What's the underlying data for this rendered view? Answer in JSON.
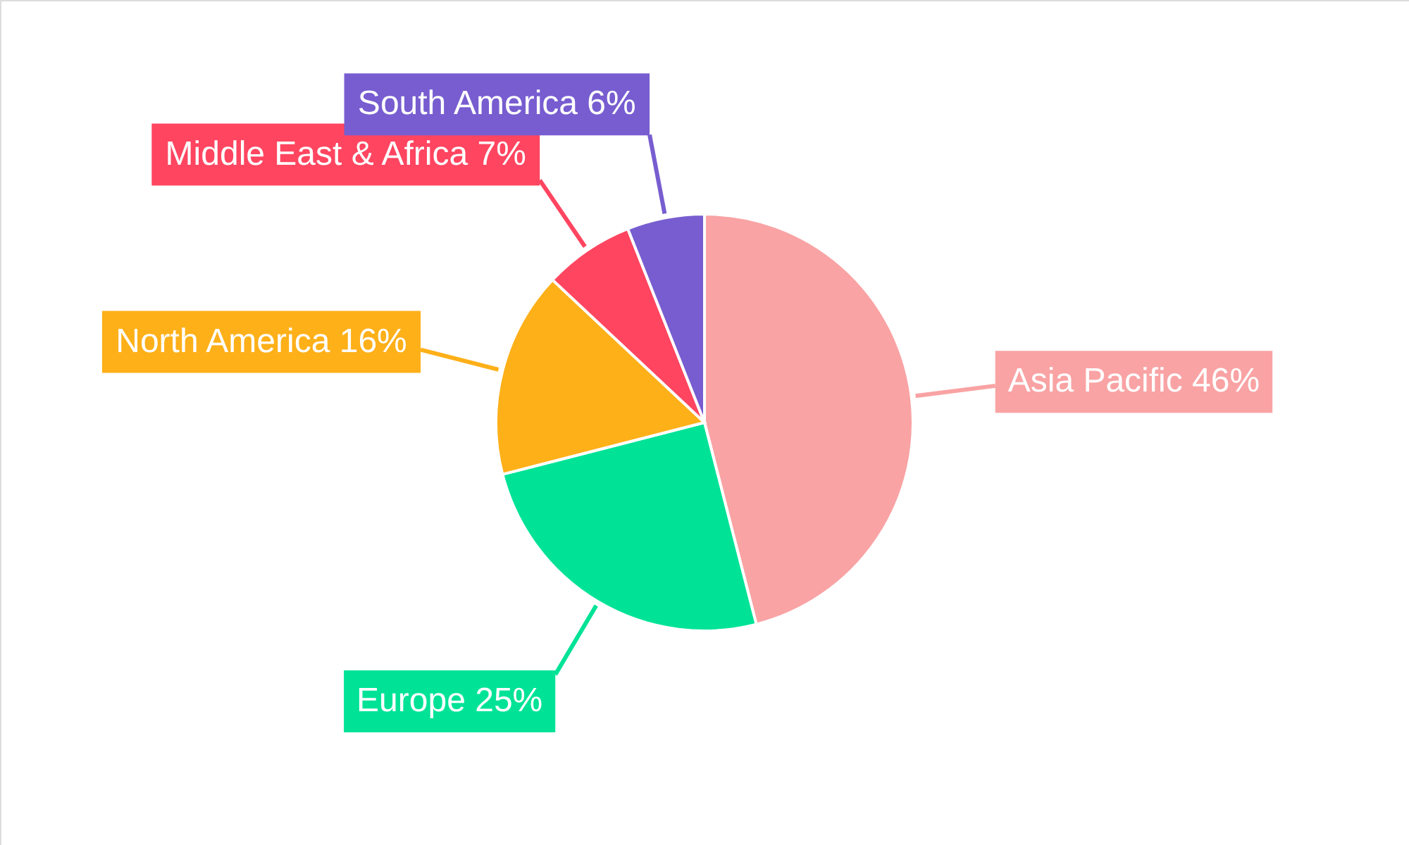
{
  "chart_data": {
    "type": "pie",
    "categories": [
      "Asia Pacific",
      "Europe",
      "North America",
      "Middle East & Africa",
      "South America"
    ],
    "values": [
      46,
      25,
      16,
      7,
      6
    ],
    "colors": [
      "#f9a3a4",
      "#00e396",
      "#feb019",
      "#ff4560",
      "#775dd0"
    ],
    "value_labels": [
      "46%",
      "25%",
      "16%",
      "7%",
      "6%"
    ]
  }
}
